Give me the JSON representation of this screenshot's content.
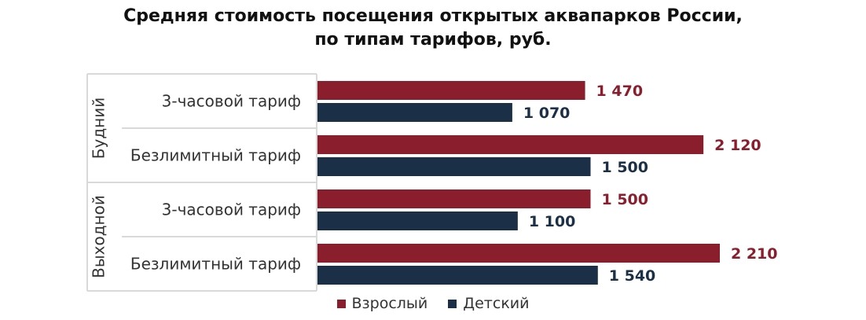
{
  "chart_data": {
    "type": "bar",
    "orientation": "horizontal",
    "title": "Средняя стоимость посещения открытых аквапарков России, по типам тарифов, руб.",
    "title_lines": [
      "Средняя стоимость посещения открытых аквапарков России,",
      "по типам тарифов, руб."
    ],
    "groups": [
      {
        "label": "Будний",
        "categories": [
          "3-часовой тариф",
          "Безлимитный тариф"
        ]
      },
      {
        "label": "Выходной",
        "categories": [
          "3-часовой тариф",
          "Безлимитный тариф"
        ]
      }
    ],
    "series": [
      {
        "name": "Взрослый",
        "color": "#8b1e2d",
        "values": [
          1470,
          2120,
          1500,
          2210
        ],
        "labels": [
          "1 470",
          "2 120",
          "1 500",
          "2 210"
        ]
      },
      {
        "name": "Детский",
        "color": "#1b2f47",
        "values": [
          1070,
          1500,
          1100,
          1540
        ],
        "labels": [
          "1 070",
          "1 500",
          "1 100",
          "1 540"
        ]
      }
    ],
    "xlim": [
      0,
      2300
    ],
    "grid": false,
    "legend_position": "bottom"
  }
}
